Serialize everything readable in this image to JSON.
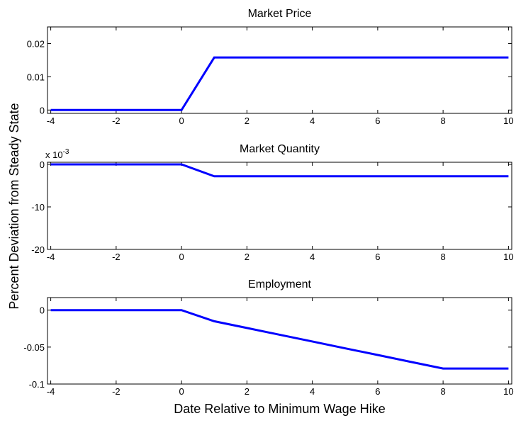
{
  "chart_data": [
    {
      "type": "line",
      "title": "Market Price",
      "x": [
        -4,
        -3,
        -2,
        -1,
        0,
        1,
        2,
        3,
        4,
        5,
        6,
        7,
        8,
        9,
        10
      ],
      "series": [
        {
          "color": "#0000ff",
          "values": [
            0,
            0,
            0,
            0,
            0,
            0.0158,
            0.0158,
            0.0158,
            0.0158,
            0.0158,
            0.0158,
            0.0158,
            0.0158,
            0.0158,
            0.0158
          ]
        }
      ],
      "xlim": [
        -4.1,
        10.1
      ],
      "xticks": [
        -4,
        -2,
        0,
        2,
        4,
        6,
        8,
        10
      ],
      "ylim": [
        -0.001,
        0.025
      ],
      "yticks": [
        0,
        0.01,
        0.02
      ]
    },
    {
      "type": "line",
      "title": "Market Quantity",
      "ylabel": "Percent Deviation from Steady State",
      "exponent_label": {
        "base": "x 10",
        "exponent": "-3"
      },
      "x": [
        -4,
        -3,
        -2,
        -1,
        0,
        1,
        2,
        3,
        4,
        5,
        6,
        7,
        8,
        9,
        10
      ],
      "series": [
        {
          "color": "#0000ff",
          "values": [
            0,
            0,
            0,
            0,
            0,
            -2.8,
            -2.8,
            -2.8,
            -2.8,
            -2.8,
            -2.8,
            -2.8,
            -2.8,
            -2.8,
            -2.8
          ]
        }
      ],
      "xlim": [
        -4.1,
        10.1
      ],
      "xticks": [
        -4,
        -2,
        0,
        2,
        4,
        6,
        8,
        10
      ],
      "ylim": [
        -20,
        0.5
      ],
      "yticks": [
        -20,
        -10,
        0
      ]
    },
    {
      "type": "line",
      "title": "Employment",
      "xlabel": "Date Relative to Minimum Wage Hike",
      "x": [
        -4,
        -3,
        -2,
        -1,
        0,
        1,
        2,
        3,
        4,
        5,
        6,
        7,
        8,
        9,
        10
      ],
      "series": [
        {
          "color": "#0000ff",
          "values": [
            0,
            0,
            0,
            0,
            0,
            -0.015,
            -0.0241,
            -0.0333,
            -0.0424,
            -0.0516,
            -0.0607,
            -0.0699,
            -0.079,
            -0.079,
            -0.079
          ]
        }
      ],
      "xlim": [
        -4.1,
        10.1
      ],
      "xticks": [
        -4,
        -2,
        0,
        2,
        4,
        6,
        8,
        10
      ],
      "ylim": [
        -0.1,
        0.017
      ],
      "yticks": [
        -0.1,
        -0.05,
        0
      ]
    }
  ]
}
